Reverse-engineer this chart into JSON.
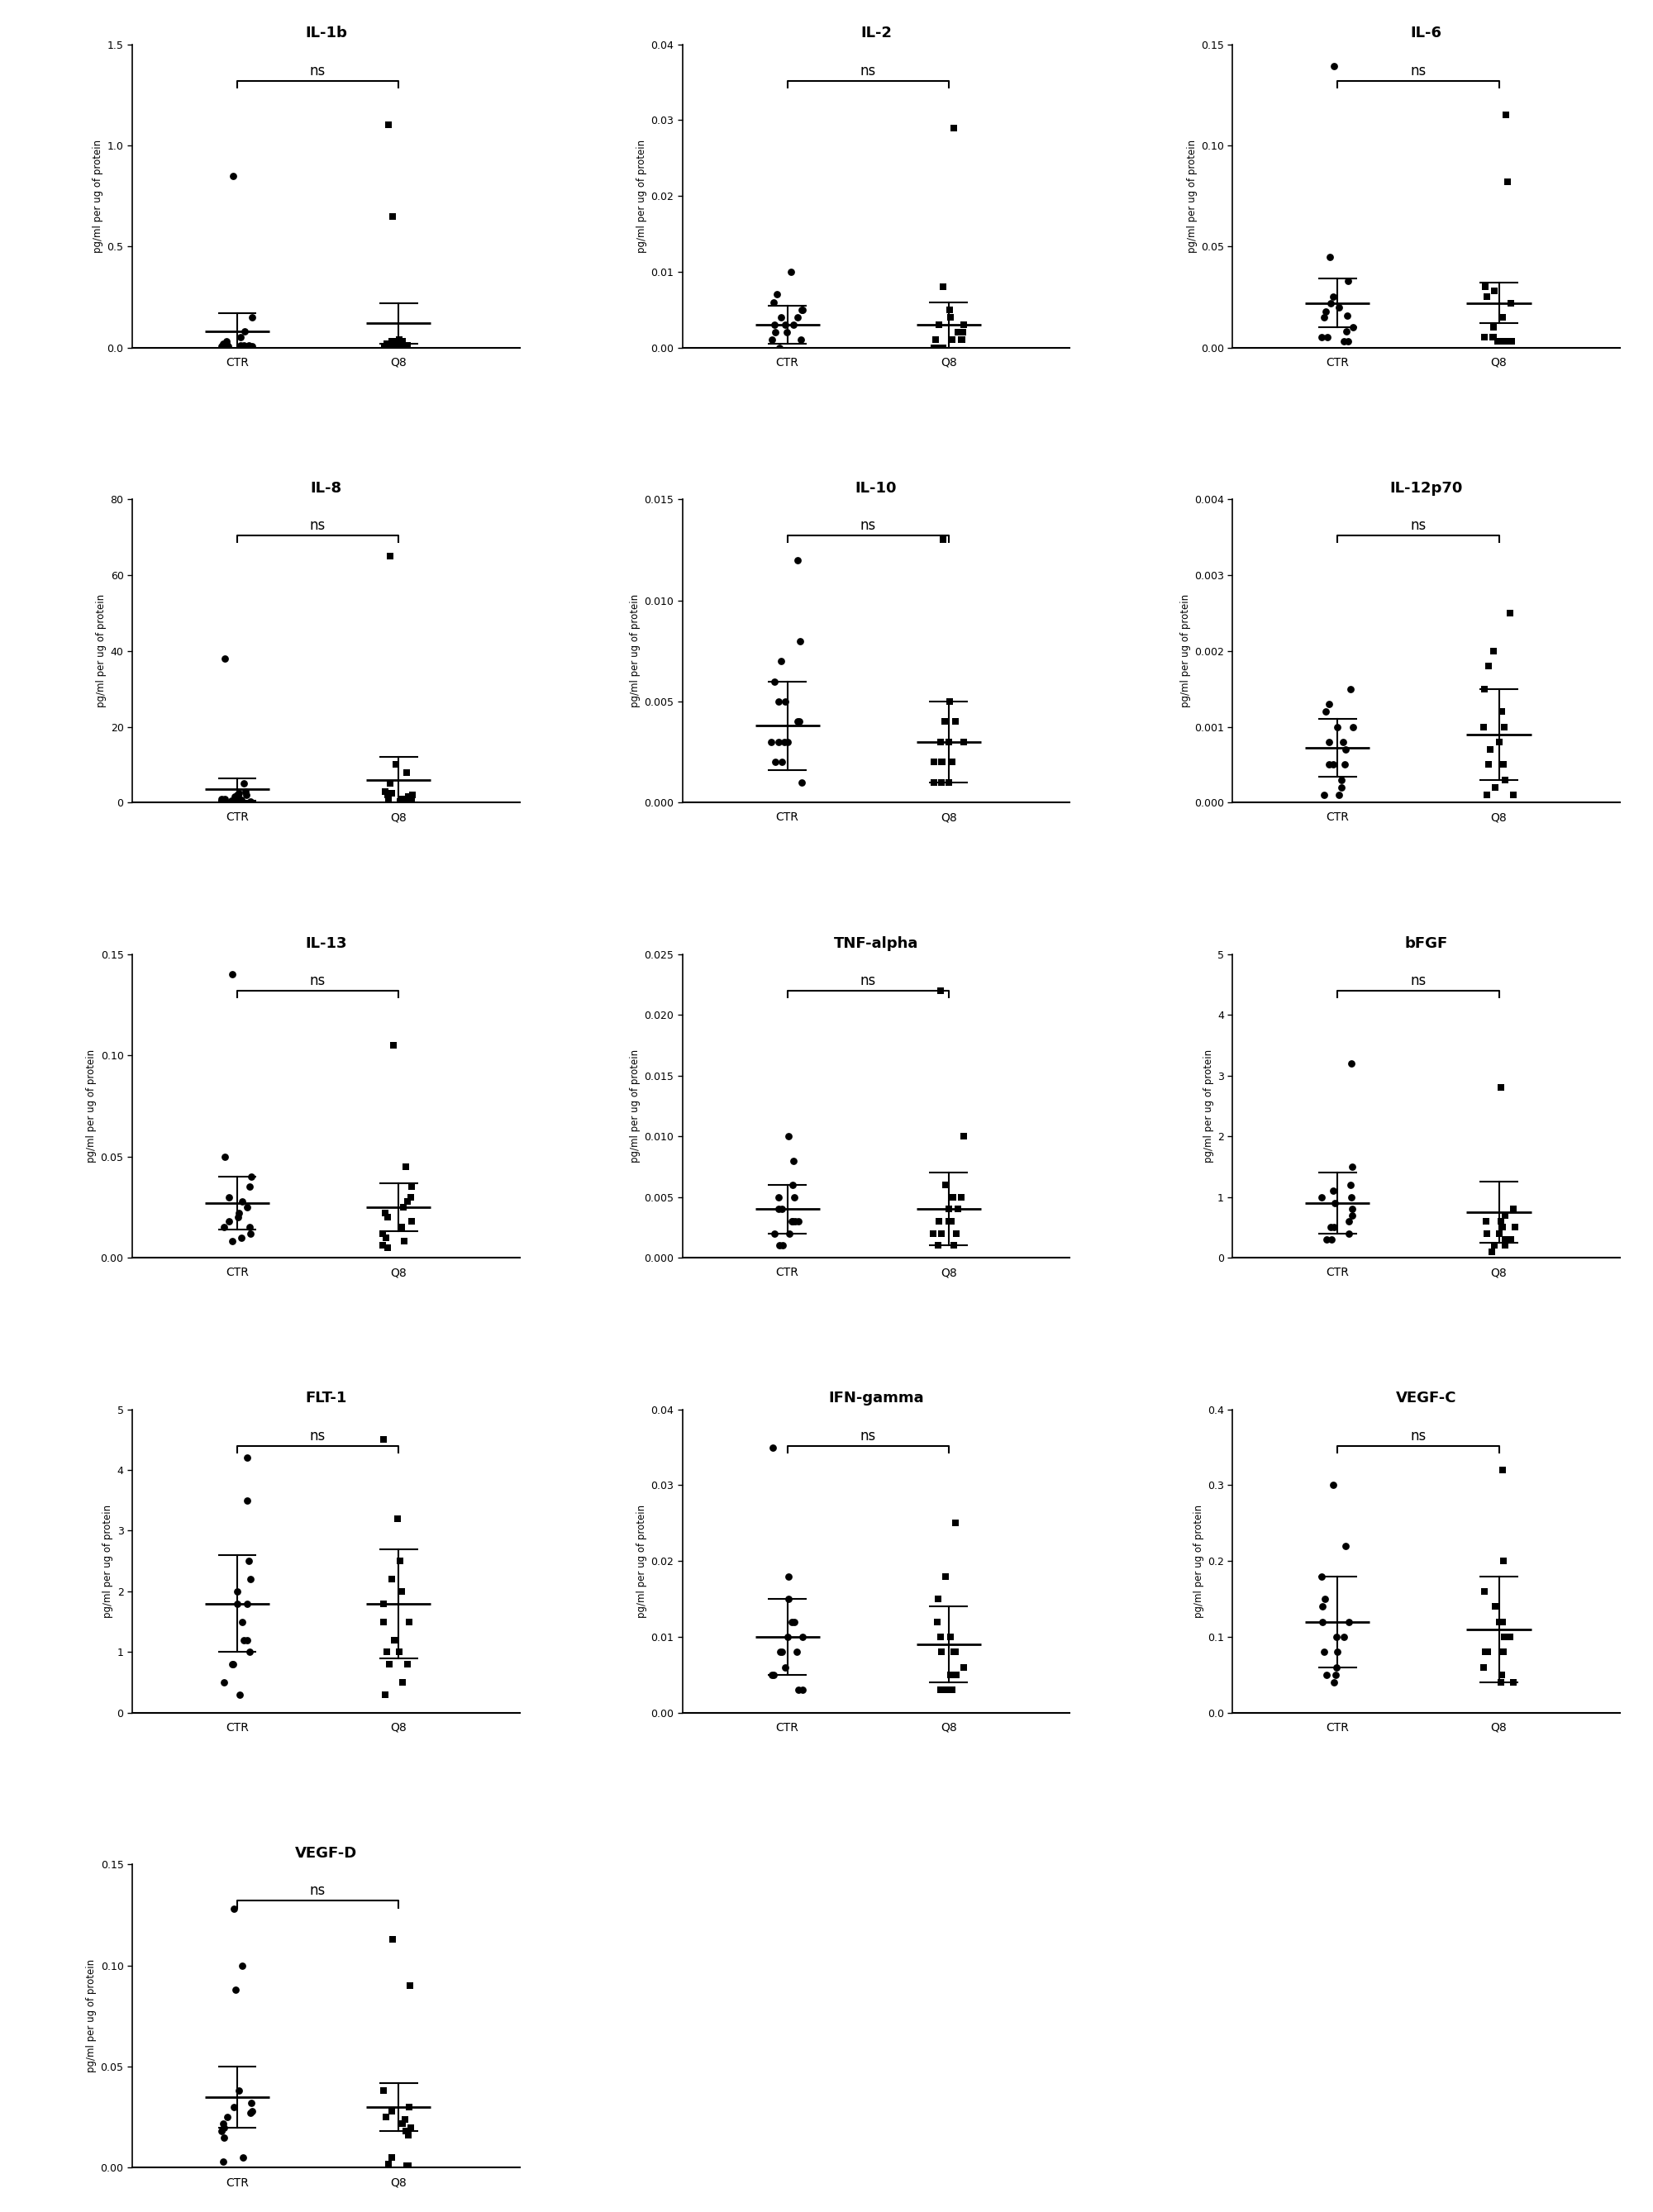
{
  "panels": [
    {
      "title": "IL-1b",
      "ylim": [
        0,
        1.5
      ],
      "yticks": [
        0.0,
        0.5,
        1.0,
        1.5
      ],
      "ytick_labels": [
        "0.0",
        "0.5",
        "1.0",
        "1.5"
      ],
      "ctr": [
        0.85,
        0.15,
        0.08,
        0.05,
        0.03,
        0.02,
        0.02,
        0.01,
        0.01,
        0.01,
        0.005,
        0.005,
        0.005,
        0.005,
        0.003
      ],
      "ctr_mean": 0.08,
      "ctr_sd": 0.09,
      "q8": [
        1.1,
        0.65,
        0.04,
        0.03,
        0.03,
        0.03,
        0.02,
        0.02,
        0.02,
        0.015,
        0.01,
        0.01,
        0.005,
        0.005,
        0.003
      ],
      "q8_mean": 0.12,
      "q8_sd": 0.1
    },
    {
      "title": "IL-2",
      "ylim": [
        0,
        0.04
      ],
      "yticks": [
        0.0,
        0.01,
        0.02,
        0.03,
        0.04
      ],
      "ytick_labels": [
        "0.00",
        "0.01",
        "0.02",
        "0.03",
        "0.04"
      ],
      "ctr": [
        0.01,
        0.007,
        0.006,
        0.005,
        0.005,
        0.004,
        0.004,
        0.003,
        0.003,
        0.003,
        0.002,
        0.002,
        0.001,
        0.001,
        0.0
      ],
      "ctr_mean": 0.003,
      "ctr_sd": 0.0025,
      "q8": [
        0.029,
        0.008,
        0.005,
        0.004,
        0.003,
        0.003,
        0.002,
        0.002,
        0.001,
        0.001,
        0.001,
        0.001,
        0.0,
        0.0,
        0.0
      ],
      "q8_mean": 0.003,
      "q8_sd": 0.003
    },
    {
      "title": "IL-6",
      "ylim": [
        0,
        0.15
      ],
      "yticks": [
        0.0,
        0.05,
        0.1,
        0.15
      ],
      "ytick_labels": [
        "0.00",
        "0.05",
        "0.10",
        "0.15"
      ],
      "ctr": [
        0.139,
        0.045,
        0.033,
        0.025,
        0.022,
        0.02,
        0.018,
        0.016,
        0.015,
        0.01,
        0.008,
        0.005,
        0.005,
        0.003,
        0.003
      ],
      "ctr_mean": 0.022,
      "ctr_sd": 0.012,
      "q8": [
        0.115,
        0.082,
        0.03,
        0.028,
        0.025,
        0.022,
        0.015,
        0.01,
        0.005,
        0.005,
        0.005,
        0.003,
        0.003,
        0.003,
        0.003
      ],
      "q8_mean": 0.022,
      "q8_sd": 0.01
    },
    {
      "title": "IL-8",
      "ylim": [
        0,
        80
      ],
      "yticks": [
        0,
        20,
        40,
        60,
        80
      ],
      "ytick_labels": [
        "0",
        "20",
        "40",
        "60",
        "80"
      ],
      "ctr": [
        38,
        5,
        3,
        2.5,
        2,
        2,
        1.5,
        1.5,
        1,
        1,
        0.8,
        0.8,
        0.5,
        0.5,
        0.3
      ],
      "ctr_mean": 3.5,
      "ctr_sd": 3.0,
      "q8": [
        65,
        10,
        8,
        5,
        3,
        2.5,
        2,
        2,
        1.5,
        1,
        1,
        0.8,
        0.8,
        0.5,
        0.3
      ],
      "q8_mean": 6,
      "q8_sd": 6
    },
    {
      "title": "IL-10",
      "ylim": [
        0,
        0.015
      ],
      "yticks": [
        0.0,
        0.005,
        0.01,
        0.015
      ],
      "ytick_labels": [
        "0.000",
        "0.005",
        "0.010",
        "0.015"
      ],
      "ctr": [
        0.012,
        0.008,
        0.007,
        0.006,
        0.005,
        0.005,
        0.004,
        0.004,
        0.003,
        0.003,
        0.003,
        0.003,
        0.002,
        0.002,
        0.001
      ],
      "ctr_mean": 0.0038,
      "ctr_sd": 0.0022,
      "q8": [
        0.013,
        0.005,
        0.004,
        0.004,
        0.003,
        0.003,
        0.003,
        0.003,
        0.002,
        0.002,
        0.002,
        0.002,
        0.001,
        0.001,
        0.001
      ],
      "q8_mean": 0.003,
      "q8_sd": 0.002
    },
    {
      "title": "IL-12p70",
      "ylim": [
        0,
        0.004
      ],
      "yticks": [
        0.0,
        0.001,
        0.002,
        0.003,
        0.004
      ],
      "ytick_labels": [
        "0.000",
        "0.001",
        "0.002",
        "0.003",
        "0.004"
      ],
      "ctr": [
        0.0015,
        0.0013,
        0.0012,
        0.001,
        0.001,
        0.0008,
        0.0008,
        0.0007,
        0.0005,
        0.0005,
        0.0005,
        0.0003,
        0.0002,
        0.0001,
        0.0001
      ],
      "ctr_mean": 0.00072,
      "ctr_sd": 0.00038,
      "q8": [
        0.0025,
        0.002,
        0.0018,
        0.0015,
        0.0012,
        0.001,
        0.001,
        0.0008,
        0.0007,
        0.0005,
        0.0005,
        0.0003,
        0.0002,
        0.0001,
        0.0001
      ],
      "q8_mean": 0.0009,
      "q8_sd": 0.0006
    },
    {
      "title": "IL-13",
      "ylim": [
        0,
        0.15
      ],
      "yticks": [
        0.0,
        0.05,
        0.1,
        0.15
      ],
      "ytick_labels": [
        "0.00",
        "0.05",
        "0.10",
        "0.15"
      ],
      "ctr": [
        0.14,
        0.05,
        0.04,
        0.035,
        0.03,
        0.028,
        0.025,
        0.022,
        0.02,
        0.018,
        0.015,
        0.015,
        0.012,
        0.01,
        0.008
      ],
      "ctr_mean": 0.027,
      "ctr_sd": 0.013,
      "q8": [
        0.105,
        0.045,
        0.035,
        0.03,
        0.028,
        0.025,
        0.022,
        0.02,
        0.018,
        0.015,
        0.012,
        0.01,
        0.008,
        0.006,
        0.005
      ],
      "q8_mean": 0.025,
      "q8_sd": 0.012
    },
    {
      "title": "TNF-alpha",
      "ylim": [
        0,
        0.025
      ],
      "yticks": [
        0.0,
        0.005,
        0.01,
        0.015,
        0.02,
        0.025
      ],
      "ytick_labels": [
        "0.000",
        "0.005",
        "0.010",
        "0.015",
        "0.020",
        "0.025"
      ],
      "ctr": [
        0.01,
        0.008,
        0.006,
        0.005,
        0.005,
        0.004,
        0.004,
        0.003,
        0.003,
        0.003,
        0.003,
        0.002,
        0.002,
        0.001,
        0.001
      ],
      "ctr_mean": 0.004,
      "ctr_sd": 0.002,
      "q8": [
        0.022,
        0.01,
        0.006,
        0.005,
        0.005,
        0.004,
        0.004,
        0.003,
        0.003,
        0.003,
        0.002,
        0.002,
        0.002,
        0.001,
        0.001
      ],
      "q8_mean": 0.004,
      "q8_sd": 0.003
    },
    {
      "title": "bFGF",
      "ylim": [
        0,
        5
      ],
      "yticks": [
        0,
        1,
        2,
        3,
        4,
        5
      ],
      "ytick_labels": [
        "0",
        "1",
        "2",
        "3",
        "4",
        "5"
      ],
      "ctr": [
        3.2,
        1.5,
        1.2,
        1.1,
        1.0,
        1.0,
        0.9,
        0.8,
        0.7,
        0.6,
        0.5,
        0.5,
        0.4,
        0.3,
        0.3
      ],
      "ctr_mean": 0.9,
      "ctr_sd": 0.5,
      "q8": [
        2.8,
        0.8,
        0.7,
        0.6,
        0.6,
        0.5,
        0.5,
        0.4,
        0.4,
        0.3,
        0.3,
        0.3,
        0.2,
        0.2,
        0.1
      ],
      "q8_mean": 0.75,
      "q8_sd": 0.5
    },
    {
      "title": "FLT-1",
      "ylim": [
        0,
        5
      ],
      "yticks": [
        0,
        1,
        2,
        3,
        4,
        5
      ],
      "ytick_labels": [
        "0",
        "1",
        "2",
        "3",
        "4",
        "5"
      ],
      "ctr": [
        4.2,
        3.5,
        2.5,
        2.2,
        2.0,
        1.8,
        1.8,
        1.5,
        1.2,
        1.2,
        1.0,
        0.8,
        0.8,
        0.5,
        0.3
      ],
      "ctr_mean": 1.8,
      "ctr_sd": 0.8,
      "q8": [
        4.5,
        3.2,
        2.5,
        2.2,
        2.0,
        1.8,
        1.5,
        1.5,
        1.2,
        1.0,
        1.0,
        0.8,
        0.8,
        0.5,
        0.3
      ],
      "q8_mean": 1.8,
      "q8_sd": 0.9
    },
    {
      "title": "IFN-gamma",
      "ylim": [
        0,
        0.04
      ],
      "yticks": [
        0.0,
        0.01,
        0.02,
        0.03,
        0.04
      ],
      "ytick_labels": [
        "0.00",
        "0.01",
        "0.02",
        "0.03",
        "0.04"
      ],
      "ctr": [
        0.035,
        0.018,
        0.015,
        0.012,
        0.012,
        0.01,
        0.01,
        0.008,
        0.008,
        0.008,
        0.006,
        0.005,
        0.005,
        0.003,
        0.003
      ],
      "ctr_mean": 0.01,
      "ctr_sd": 0.005,
      "q8": [
        0.025,
        0.018,
        0.015,
        0.012,
        0.01,
        0.01,
        0.008,
        0.008,
        0.008,
        0.006,
        0.005,
        0.005,
        0.003,
        0.003,
        0.003
      ],
      "q8_mean": 0.009,
      "q8_sd": 0.005
    },
    {
      "title": "VEGF-C",
      "ylim": [
        0,
        0.4
      ],
      "yticks": [
        0.0,
        0.1,
        0.2,
        0.3,
        0.4
      ],
      "ytick_labels": [
        "0.0",
        "0.1",
        "0.2",
        "0.3",
        "0.4"
      ],
      "ctr": [
        0.3,
        0.22,
        0.18,
        0.15,
        0.14,
        0.12,
        0.12,
        0.1,
        0.1,
        0.08,
        0.08,
        0.06,
        0.05,
        0.05,
        0.04
      ],
      "ctr_mean": 0.12,
      "ctr_sd": 0.06,
      "q8": [
        0.32,
        0.2,
        0.16,
        0.14,
        0.12,
        0.12,
        0.1,
        0.1,
        0.08,
        0.08,
        0.08,
        0.06,
        0.05,
        0.04,
        0.04
      ],
      "q8_mean": 0.11,
      "q8_sd": 0.07
    },
    {
      "title": "VEGF-D",
      "ylim": [
        0,
        0.15
      ],
      "yticks": [
        0.0,
        0.05,
        0.1,
        0.15
      ],
      "ytick_labels": [
        "0.00",
        "0.05",
        "0.10",
        "0.15"
      ],
      "ctr": [
        0.128,
        0.1,
        0.088,
        0.038,
        0.032,
        0.03,
        0.028,
        0.027,
        0.025,
        0.022,
        0.02,
        0.018,
        0.015,
        0.005,
        0.003
      ],
      "ctr_mean": 0.035,
      "ctr_sd": 0.015,
      "q8": [
        0.113,
        0.09,
        0.038,
        0.03,
        0.028,
        0.025,
        0.024,
        0.022,
        0.02,
        0.018,
        0.016,
        0.005,
        0.002,
        0.001,
        0.001
      ],
      "q8_mean": 0.03,
      "q8_sd": 0.012
    }
  ],
  "ylabel": "pg/ml per ug of protein",
  "marker_size": 40,
  "color": "#000000"
}
